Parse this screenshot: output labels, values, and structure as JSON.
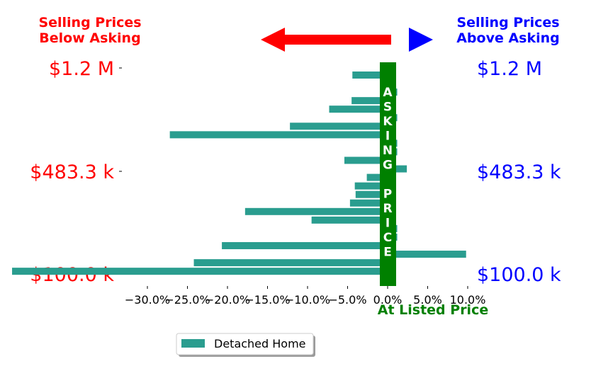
{
  "chart_data": {
    "type": "bar",
    "orientation": "horizontal",
    "legend": {
      "placement": "bottom-left, below chart",
      "label": "Detached Home"
    },
    "series": [
      {
        "name": "Detached Home",
        "color": "#2a9d8f",
        "values": [
          -4.4,
          0.1,
          1.2,
          -4.5,
          -7.3,
          1.2,
          -12.2,
          -27.2,
          1.2,
          1.2,
          -5.4,
          2.4,
          -2.6,
          -4.1,
          -4.0,
          -4.7,
          -17.8,
          -9.5,
          1.2,
          1.2,
          -20.7,
          9.8,
          -24.2,
          -46.9
        ]
      }
    ],
    "x_axis": {
      "ticks": [
        -30,
        -25,
        -20,
        -15,
        -10,
        -5,
        0,
        5,
        10
      ],
      "tick_labels": [
        "−30.0%",
        "−25.0%",
        "−20.0%",
        "−15.0%",
        "−10.0%",
        "−5.0%",
        "0.0%",
        "5.0%",
        "10.0%"
      ],
      "label": "At Listed Price",
      "label_color": "#008000"
    },
    "y_axis": {
      "left_tick_labels": [
        "$1.2 M",
        "$483.3 k",
        "$100.0 k"
      ],
      "right_tick_labels": [
        "$1.2 M",
        "$483.3 k",
        "$100.0 k"
      ],
      "left_color": "#ff0000",
      "right_color": "#0000ff"
    },
    "asking_band": {
      "text": "ASKING PRICE",
      "color": "#008000"
    },
    "header": {
      "left_label_line1": "Selling Prices",
      "left_label_line2": "Below Asking",
      "left_color": "#ff0000",
      "right_label_line1": "Selling Prices",
      "right_label_line2": "Above Asking",
      "right_color": "#0000ff"
    },
    "grid": false
  }
}
